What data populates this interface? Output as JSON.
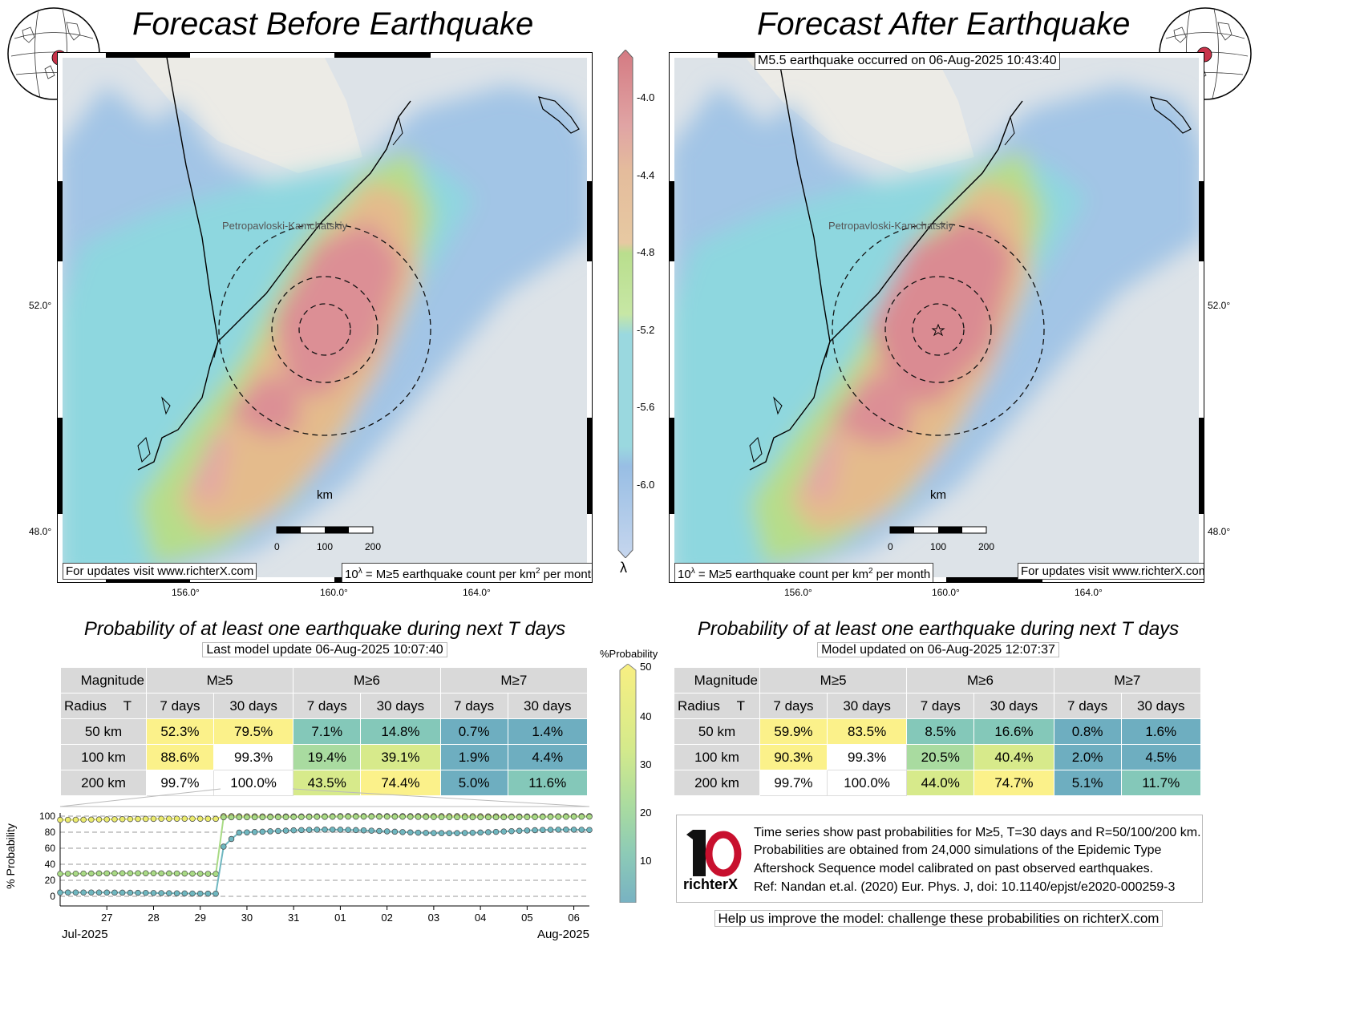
{
  "left_panel": {
    "title": "Forecast Before Earthquake",
    "city_label": "Petropavloski-Kamchatskiy",
    "km_label": "km",
    "scale_labels": [
      "0",
      "100",
      "200"
    ],
    "lat_ticks": [
      "52.0°",
      "48.0°"
    ],
    "lon_ticks": [
      "156.0°",
      "160.0°",
      "164.0°"
    ],
    "visit_note": "For updates visit www.richterX.com",
    "unit_note_prefix": "10",
    "unit_note_sup1": "λ",
    "unit_note_mid": " = M≥5 earthquake count per km",
    "unit_note_sup2": "2",
    "unit_note_suffix": " per month"
  },
  "right_panel": {
    "title": "Forecast After Earthquake",
    "event_banner": "M5.5 earthquake occurred on 06-Aug-2025 10:43:40",
    "city_label": "Petropavloski-Kamchatskiy",
    "km_label": "km",
    "scale_labels": [
      "0",
      "100",
      "200"
    ],
    "lat_ticks": [
      "52.0°",
      "48.0°"
    ],
    "lon_ticks": [
      "156.0°",
      "160.0°",
      "164.0°"
    ],
    "visit_note": "For updates visit www.richterX.com"
  },
  "colorbar": {
    "symbol": "λ",
    "labels": [
      "-4.0",
      "-4.4",
      "-4.8",
      "-5.2",
      "-5.6",
      "-6.0"
    ]
  },
  "prob_colorbar": {
    "title": "%Probability",
    "labels": [
      "50",
      "40",
      "30",
      "20",
      "10"
    ]
  },
  "left_table": {
    "title": "Probability of at least one earthquake during next T days",
    "subtitle": "Last model update 06-Aug-2025 10:07:40",
    "corner_top": "Magnitude",
    "corner_radius": "Radius",
    "corner_T": "T",
    "magnitudes": [
      "M≥5",
      "M≥6",
      "M≥7"
    ],
    "periods": [
      "7 days",
      "30 days",
      "7 days",
      "30 days",
      "7 days",
      "30 days"
    ],
    "rows": [
      {
        "radius": "50 km",
        "values": [
          "52.3%",
          "79.5%",
          "7.1%",
          "14.8%",
          "0.7%",
          "1.4%"
        ]
      },
      {
        "radius": "100 km",
        "values": [
          "88.6%",
          "99.3%",
          "19.4%",
          "39.1%",
          "1.9%",
          "4.4%"
        ]
      },
      {
        "radius": "200 km",
        "values": [
          "99.7%",
          "100.0%",
          "43.5%",
          "74.4%",
          "5.0%",
          "11.6%"
        ]
      }
    ]
  },
  "right_table": {
    "title": "Probability of at least one earthquake during next T days",
    "subtitle": "Model updated on 06-Aug-2025 12:07:37",
    "corner_top": "Magnitude",
    "corner_radius": "Radius",
    "corner_T": "T",
    "magnitudes": [
      "M≥5",
      "M≥6",
      "M≥7"
    ],
    "periods": [
      "7 days",
      "30 days",
      "7 days",
      "30 days",
      "7 days",
      "30 days"
    ],
    "rows": [
      {
        "radius": "50 km",
        "values": [
          "59.9%",
          "83.5%",
          "8.5%",
          "16.6%",
          "0.8%",
          "1.6%"
        ]
      },
      {
        "radius": "100 km",
        "values": [
          "90.3%",
          "99.3%",
          "20.5%",
          "40.4%",
          "2.0%",
          "4.5%"
        ]
      },
      {
        "radius": "200 km",
        "values": [
          "99.7%",
          "100.0%",
          "44.0%",
          "74.7%",
          "5.1%",
          "11.7%"
        ]
      }
    ]
  },
  "info": {
    "lines": [
      "Time series show past probabilities for M≥5, T=30 days and R=50/100/200 km.",
      "Probabilities are obtained from 24,000 simulations of the Epidemic Type",
      "Aftershock Sequence model calibrated on past observed earthquakes.",
      "Ref: Nandan et.al. (2020) Eur. Phys. J, doi: 10.1140/epjst/e2020-000259-3"
    ],
    "logo_text": "richterX",
    "help": "Help us improve the model: challenge these probabilities on richterX.com"
  },
  "chart_data": {
    "type": "line",
    "ylabel": "% Probability",
    "ylim": [
      0,
      100
    ],
    "yticks": [
      0,
      20,
      40,
      60,
      80,
      100
    ],
    "x_start": "2025-07-26",
    "x_end": "2025-08-06",
    "x_tick_labels": [
      "27",
      "28",
      "29",
      "30",
      "31",
      "01",
      "02",
      "03",
      "04",
      "05",
      "06"
    ],
    "month_labels": [
      "Jul-2025",
      "Aug-2025"
    ],
    "grid": "horizontal dashed",
    "series": [
      {
        "radius_km": 200,
        "color": "#ecec6e",
        "before": 96,
        "after": 100
      },
      {
        "radius_km": 100,
        "color": "#a9db85",
        "before": 28,
        "after": 99
      },
      {
        "radius_km": 50,
        "color": "#6fb7c0",
        "before": 4,
        "after_start": 62,
        "after": 81
      }
    ],
    "step_time": "2025-07-29 12:00"
  },
  "colors": {
    "yellow": "#fbf18a",
    "lightgreen": "#d7ea8b",
    "green": "#a9dba0",
    "teal": "#84c8b9",
    "blue": "#6eaec0"
  }
}
